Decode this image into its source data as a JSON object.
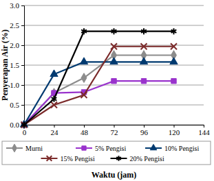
{
  "chart_data": {
    "type": "line",
    "x_label": "Waktu (jam)",
    "y_label": "Penyerapan Air (%)",
    "x": [
      0,
      24,
      48,
      72,
      96,
      120
    ],
    "xlim": [
      0,
      144
    ],
    "xticks": [
      0,
      24,
      48,
      72,
      96,
      120,
      144
    ],
    "ylim": [
      0,
      3
    ],
    "yticks": [
      {
        "value": 0,
        "label": "0.0"
      },
      0.5,
      {
        "value": 1,
        "label": "1.0"
      },
      1.5,
      {
        "value": 2,
        "label": "2.0"
      },
      2.5,
      {
        "value": 3,
        "label": "3.0"
      }
    ],
    "grid": true,
    "legend": "bottom",
    "series": [
      {
        "name": "Murni",
        "color": "#8c8c8c",
        "marker": "diamond",
        "values": [
          0,
          0.8,
          1.18,
          1.75,
          1.75,
          1.75
        ]
      },
      {
        "name": "5% Pengisi",
        "color": "#9933cc",
        "marker": "square",
        "values": [
          0,
          0.8,
          0.82,
          1.1,
          1.1,
          1.1
        ]
      },
      {
        "name": "10% Pengisi",
        "color": "#003a70",
        "marker": "triangle",
        "values": [
          0,
          1.27,
          1.58,
          1.58,
          1.58,
          1.58
        ]
      },
      {
        "name": "15% Pengisi",
        "color": "#7b2a2a",
        "marker": "x",
        "values": [
          0,
          0.5,
          0.75,
          1.97,
          1.97,
          1.97
        ]
      },
      {
        "name": "20% Pengisi",
        "color": "#000000",
        "marker": "star",
        "values": [
          0,
          0.65,
          2.35,
          2.35,
          2.35,
          2.35
        ]
      }
    ]
  }
}
